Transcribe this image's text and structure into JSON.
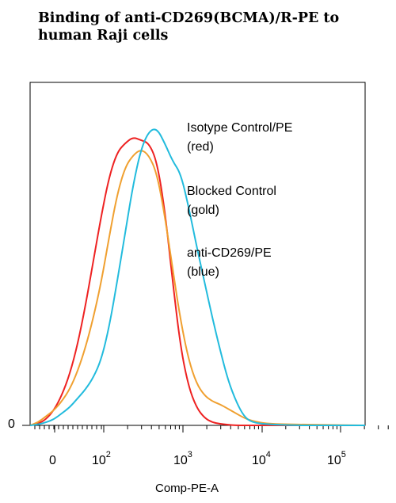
{
  "chart_data": {
    "type": "line",
    "title_lines": [
      "Binding of anti-CD269(BCMA)/R-PE  to",
      "human Raji cells"
    ],
    "xlabel": "Comp-PE-A",
    "y_tick_label": "0",
    "x_ticks": [
      {
        "label": "0",
        "sup": ""
      },
      {
        "label": "10",
        "sup": "2"
      },
      {
        "label": "10",
        "sup": "3"
      },
      {
        "label": "10",
        "sup": "4"
      },
      {
        "label": "10",
        "sup": "5"
      }
    ],
    "legend": [
      {
        "line1": "Isotype Control/PE",
        "line2": "(red)"
      },
      {
        "line1": "Blocked Control",
        "line2": "(gold)"
      },
      {
        "line1": "anti-CD269/PE",
        "line2": "(blue)"
      }
    ],
    "series": [
      {
        "color": "#ee2222",
        "x": [
          0,
          10,
          20,
          30,
          40,
          50,
          60,
          70,
          80,
          90,
          100,
          110,
          120,
          130,
          140,
          150,
          160,
          170,
          180,
          190,
          200,
          210,
          220,
          230,
          240,
          250,
          260,
          270,
          280,
          300,
          340,
          360,
          423
        ],
        "y": [
          0,
          0.5,
          2,
          5,
          10,
          17,
          27,
          40,
          55,
          70,
          83,
          91,
          94,
          96,
          95,
          94,
          88,
          72,
          48,
          26,
          13,
          6,
          2.5,
          1,
          0.5,
          0.2,
          0,
          0,
          0,
          0,
          0,
          0,
          0
        ]
      },
      {
        "color": "#f0a030",
        "x": [
          0,
          10,
          20,
          30,
          40,
          50,
          60,
          70,
          80,
          90,
          100,
          110,
          120,
          130,
          140,
          150,
          160,
          170,
          180,
          190,
          200,
          210,
          220,
          230,
          240,
          250,
          260,
          270,
          280,
          300,
          340,
          360,
          423
        ],
        "y": [
          0,
          1,
          3,
          5,
          8,
          12,
          18,
          26,
          36,
          48,
          63,
          77,
          86,
          90,
          92,
          90,
          84,
          70,
          52,
          35,
          22,
          14,
          10,
          8,
          7,
          5.5,
          4,
          2.5,
          1.5,
          0.5,
          0.3,
          0.2,
          0
        ]
      },
      {
        "color": "#22bbdd",
        "x": [
          0,
          10,
          20,
          30,
          40,
          50,
          60,
          70,
          80,
          90,
          100,
          110,
          120,
          130,
          140,
          150,
          160,
          170,
          180,
          190,
          200,
          210,
          220,
          230,
          240,
          250,
          260,
          270,
          280,
          300,
          340,
          360,
          423
        ],
        "y": [
          0,
          0.3,
          1,
          2,
          4,
          6,
          9,
          12,
          16,
          22,
          33,
          48,
          64,
          80,
          92,
          98,
          99,
          94,
          88,
          84,
          73,
          60,
          48,
          36,
          25,
          15,
          8,
          3,
          1,
          0.3,
          0,
          0,
          0
        ]
      }
    ]
  }
}
